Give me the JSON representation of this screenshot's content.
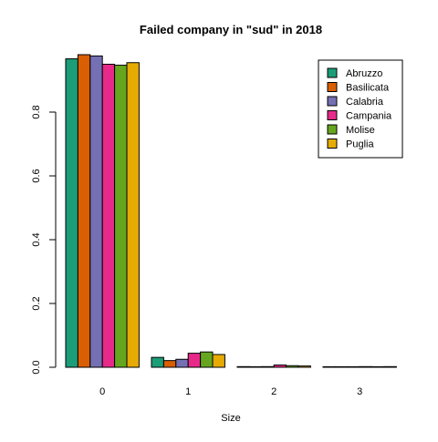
{
  "chart_data": {
    "type": "bar",
    "title": "Failed company in \"sud\" in 2018",
    "xlabel": "Size",
    "ylabel": "",
    "categories": [
      "0",
      "1",
      "2",
      "3"
    ],
    "ylim": [
      0,
      0.98
    ],
    "yticks": [
      "0.0",
      "0.2",
      "0.4",
      "0.6",
      "0.8"
    ],
    "legend_position": "top-right",
    "grid": false,
    "series": [
      {
        "name": "Abruzzo",
        "color": "#1b9e77",
        "values": [
          0.967,
          0.031,
          0.002,
          0.0
        ]
      },
      {
        "name": "Basilicata",
        "color": "#d95f02",
        "values": [
          0.98,
          0.021,
          0.0,
          0.0
        ]
      },
      {
        "name": "Calabria",
        "color": "#7570b3",
        "values": [
          0.976,
          0.025,
          0.002,
          0.0
        ]
      },
      {
        "name": "Campania",
        "color": "#e7298a",
        "values": [
          0.95,
          0.044,
          0.007,
          0.002
        ]
      },
      {
        "name": "Molise",
        "color": "#66a61e",
        "values": [
          0.947,
          0.048,
          0.005,
          0.0
        ]
      },
      {
        "name": "Puglia",
        "color": "#e6ab02",
        "values": [
          0.955,
          0.04,
          0.004,
          0.002
        ]
      }
    ]
  }
}
